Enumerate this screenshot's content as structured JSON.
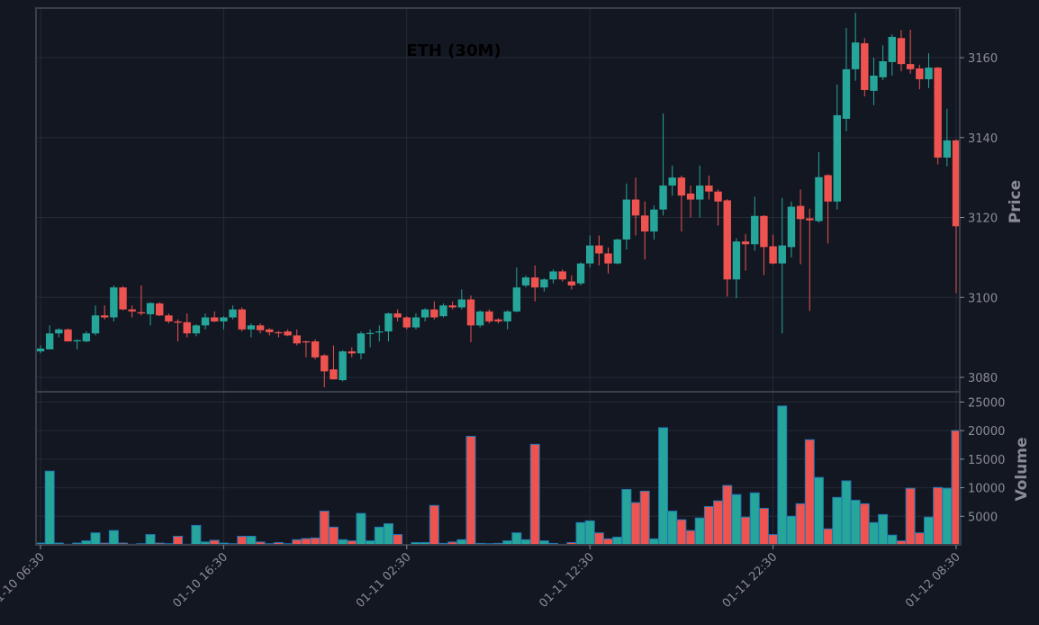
{
  "chart_data": {
    "type": "candlestick",
    "title": "ETH (30M)",
    "interval": "30M",
    "price_label": "Price",
    "volume_label": "Volume",
    "price_ylim": [
      3076.4,
      3172.4
    ],
    "volume_ylim": [
      0,
      26800
    ],
    "price_ticks": [
      3080,
      3100,
      3120,
      3140,
      3160
    ],
    "volume_ticks": [
      5000,
      10000,
      15000,
      20000,
      25000
    ],
    "x_tick_labels": [
      "01-10 06:30",
      "01-10 16:30",
      "01-11 02:30",
      "01-11 12:30",
      "01-11 22:30",
      "01-12 08:30"
    ],
    "x_tick_every": 20,
    "grid": true,
    "colors": {
      "up": "#26a69a",
      "down": "#ef5350",
      "volume_edge": "#1f77b4",
      "background": "#131722",
      "grid": "#262a35"
    },
    "ohlc": [
      [
        3086.5,
        3088,
        3086,
        3087.2
      ],
      [
        3087,
        3093,
        3087,
        3091
      ],
      [
        3091,
        3092.3,
        3090,
        3092
      ],
      [
        3092,
        3092.2,
        3089,
        3089
      ],
      [
        3089,
        3089.5,
        3087,
        3089.3
      ],
      [
        3089,
        3091.5,
        3088.8,
        3091
      ],
      [
        3091,
        3098,
        3090.5,
        3095.5
      ],
      [
        3095.5,
        3098,
        3094.5,
        3095
      ],
      [
        3095,
        3103,
        3094,
        3102.5
      ],
      [
        3102.5,
        3102.8,
        3096.8,
        3097
      ],
      [
        3097,
        3098,
        3095,
        3096.5
      ],
      [
        3096.3,
        3103,
        3095.5,
        3096
      ],
      [
        3095.8,
        3098.8,
        3093,
        3098.6
      ],
      [
        3098.5,
        3098.8,
        3095.3,
        3095.5
      ],
      [
        3095.5,
        3096,
        3093.5,
        3094
      ],
      [
        3094,
        3094.5,
        3089,
        3093.7
      ],
      [
        3093.8,
        3096,
        3090,
        3091
      ],
      [
        3091,
        3093.3,
        3090.3,
        3093
      ],
      [
        3093,
        3096,
        3092,
        3095
      ],
      [
        3095,
        3096.5,
        3093.8,
        3094
      ],
      [
        3094,
        3095.3,
        3092,
        3095
      ],
      [
        3095,
        3098,
        3094.5,
        3097
      ],
      [
        3097,
        3097.5,
        3091.5,
        3092
      ],
      [
        3092,
        3093.5,
        3090,
        3093
      ],
      [
        3093,
        3093.5,
        3091,
        3091.8
      ],
      [
        3092,
        3092.3,
        3090.5,
        3091.3
      ],
      [
        3091.3,
        3091.6,
        3090,
        3091.2
      ],
      [
        3091.5,
        3092,
        3090.3,
        3090.5
      ],
      [
        3090.5,
        3092,
        3088,
        3088.5
      ],
      [
        3089,
        3089.2,
        3085,
        3088.8
      ],
      [
        3089,
        3089.5,
        3084.5,
        3085
      ],
      [
        3085.5,
        3085.8,
        3077.5,
        3081.5
      ],
      [
        3082,
        3088,
        3079.5,
        3079.5
      ],
      [
        3079.3,
        3086.8,
        3079,
        3086.5
      ],
      [
        3086.5,
        3087.5,
        3085,
        3086
      ],
      [
        3086,
        3091.5,
        3084.5,
        3091
      ],
      [
        3091,
        3092,
        3087.5,
        3091.1
      ],
      [
        3091.3,
        3093,
        3089,
        3091.5
      ],
      [
        3091.5,
        3096.2,
        3089,
        3096
      ],
      [
        3096,
        3097,
        3094,
        3095
      ],
      [
        3095,
        3095.3,
        3092,
        3092.5
      ],
      [
        3092.5,
        3096,
        3092,
        3095
      ],
      [
        3095,
        3097.3,
        3094,
        3097
      ],
      [
        3097,
        3099,
        3094.5,
        3095
      ],
      [
        3095.3,
        3098.5,
        3095,
        3098
      ],
      [
        3098,
        3099,
        3097,
        3097.5
      ],
      [
        3097.5,
        3102,
        3097,
        3099.5
      ],
      [
        3099.5,
        3100.5,
        3088.8,
        3093
      ],
      [
        3093,
        3096.8,
        3092.5,
        3096.5
      ],
      [
        3096.5,
        3097,
        3093.5,
        3094
      ],
      [
        3094.5,
        3094.8,
        3093.5,
        3094
      ],
      [
        3094,
        3096.8,
        3092,
        3096.5
      ],
      [
        3096.5,
        3107.5,
        3096.3,
        3102.5
      ],
      [
        3103,
        3105.5,
        3102.5,
        3105
      ],
      [
        3105,
        3108,
        3099,
        3102.5
      ],
      [
        3102.5,
        3104.8,
        3101.5,
        3104.5
      ],
      [
        3104.5,
        3107,
        3103.5,
        3106.5
      ],
      [
        3106.5,
        3107,
        3104,
        3104.5
      ],
      [
        3104,
        3105.5,
        3102,
        3103
      ],
      [
        3103.5,
        3108.8,
        3103,
        3108.5
      ],
      [
        3108.5,
        3115.5,
        3107.5,
        3113
      ],
      [
        3113,
        3115.5,
        3108,
        3111
      ],
      [
        3111,
        3112.5,
        3106,
        3108.5
      ],
      [
        3108.5,
        3114.7,
        3108.3,
        3114.5
      ],
      [
        3114.5,
        3128.5,
        3112,
        3124.5
      ],
      [
        3124.5,
        3130,
        3115.5,
        3120.5
      ],
      [
        3120.5,
        3124,
        3109.5,
        3116.5
      ],
      [
        3116.5,
        3123,
        3114.5,
        3122
      ],
      [
        3122,
        3146,
        3120.5,
        3128
      ],
      [
        3128,
        3133,
        3125.5,
        3130
      ],
      [
        3130,
        3130.5,
        3116.5,
        3125.5
      ],
      [
        3126,
        3128,
        3120,
        3124.5
      ],
      [
        3124.5,
        3133,
        3120,
        3128
      ],
      [
        3128,
        3130.5,
        3124.5,
        3126.5
      ],
      [
        3126.5,
        3127,
        3118,
        3124
      ],
      [
        3124.3,
        3124.6,
        3100.2,
        3104.5
      ],
      [
        3104.5,
        3114.8,
        3099.8,
        3114
      ],
      [
        3114,
        3115.9,
        3106.7,
        3113.3
      ],
      [
        3113.3,
        3125.2,
        3111.7,
        3120.4
      ],
      [
        3120.4,
        3120.6,
        3105.6,
        3112.6
      ],
      [
        3112.8,
        3115.7,
        3108.3,
        3108.5
      ],
      [
        3108.5,
        3124.9,
        3091,
        3113
      ],
      [
        3112.6,
        3124,
        3110,
        3122.7
      ],
      [
        3122.9,
        3127,
        3108.3,
        3119.6
      ],
      [
        3119.8,
        3122.2,
        3096.6,
        3119.3
      ],
      [
        3119.1,
        3136.4,
        3118.7,
        3130.1
      ],
      [
        3130.6,
        3130.8,
        3113.5,
        3124
      ],
      [
        3124,
        3153.3,
        3122,
        3145.6
      ],
      [
        3144.7,
        3167.4,
        3141.6,
        3157.1
      ],
      [
        3157.1,
        3171.2,
        3154.2,
        3163.8
      ],
      [
        3163.6,
        3164.9,
        3150.3,
        3151.9
      ],
      [
        3151.7,
        3160,
        3148.1,
        3155.5
      ],
      [
        3155.1,
        3163.1,
        3154.4,
        3159.1
      ],
      [
        3158.9,
        3165.8,
        3155.5,
        3165.2
      ],
      [
        3164.9,
        3166.9,
        3156.6,
        3158.4
      ],
      [
        3158.4,
        3167,
        3156,
        3157.1
      ],
      [
        3157.3,
        3158.2,
        3152.1,
        3154.6
      ],
      [
        3154.6,
        3161.1,
        3152.4,
        3157.5
      ],
      [
        3157.5,
        3157.7,
        3133.3,
        3135
      ],
      [
        3135,
        3147.2,
        3132.8,
        3139.3
      ],
      [
        3139.3,
        3139.5,
        3101.1,
        3117.8
      ]
    ],
    "volume": [
      300,
      12900,
      300,
      100,
      300,
      700,
      2100,
      300,
      2500,
      300,
      100,
      200,
      1800,
      300,
      200,
      1500,
      100,
      3400,
      500,
      800,
      300,
      200,
      1500,
      1500,
      500,
      200,
      400,
      200,
      900,
      1100,
      1200,
      5900,
      3100,
      900,
      700,
      5500,
      700,
      3100,
      3700,
      1800,
      50,
      400,
      400,
      6900,
      250,
      500,
      900,
      19000,
      250,
      200,
      250,
      700,
      2100,
      900,
      17600,
      700,
      250,
      100,
      400,
      3900,
      4200,
      2100,
      1050,
      1350,
      9700,
      7400,
      9400,
      1050,
      20500,
      5900,
      4400,
      2500,
      4700,
      6700,
      7700,
      10400,
      8800,
      4850,
      9100,
      6400,
      1800,
      24300,
      5000,
      7200,
      18400,
      11800,
      2800,
      8300,
      11200,
      7800,
      7200,
      3900,
      5300,
      1700,
      700,
      9900,
      2100,
      4850,
      10050,
      9900,
      20000
    ]
  }
}
